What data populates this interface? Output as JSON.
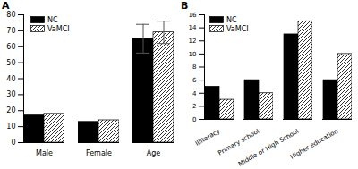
{
  "chart_data": [
    {
      "type": "bar",
      "title": "A",
      "categories": [
        "Male",
        "Female",
        "Age"
      ],
      "series": [
        {
          "name": "NC",
          "color": "#000000",
          "values": [
            17,
            13,
            65
          ],
          "errors": [
            null,
            null,
            9
          ]
        },
        {
          "name": "VaMCI",
          "color": "#ffffff",
          "values": [
            18,
            14,
            69
          ],
          "errors": [
            null,
            null,
            7
          ]
        }
      ],
      "ylim": [
        0,
        80
      ],
      "yticks": [
        0,
        10,
        20,
        30,
        40,
        50,
        60,
        70,
        80
      ],
      "legend": "upper left"
    },
    {
      "type": "bar",
      "title": "B",
      "categories": [
        "Illiteracy",
        "Primary school",
        "Middle or High School",
        "Higher education"
      ],
      "series": [
        {
          "name": "NC",
          "color": "#000000",
          "values": [
            5,
            6,
            13,
            6
          ]
        },
        {
          "name": "VaMCI",
          "color": "#ffffff",
          "values": [
            3,
            4,
            15,
            10
          ]
        }
      ],
      "ylim": [
        0,
        16
      ],
      "yticks": [
        0,
        2,
        4,
        6,
        8,
        10,
        12,
        14,
        16
      ],
      "legend": "upper left"
    }
  ]
}
